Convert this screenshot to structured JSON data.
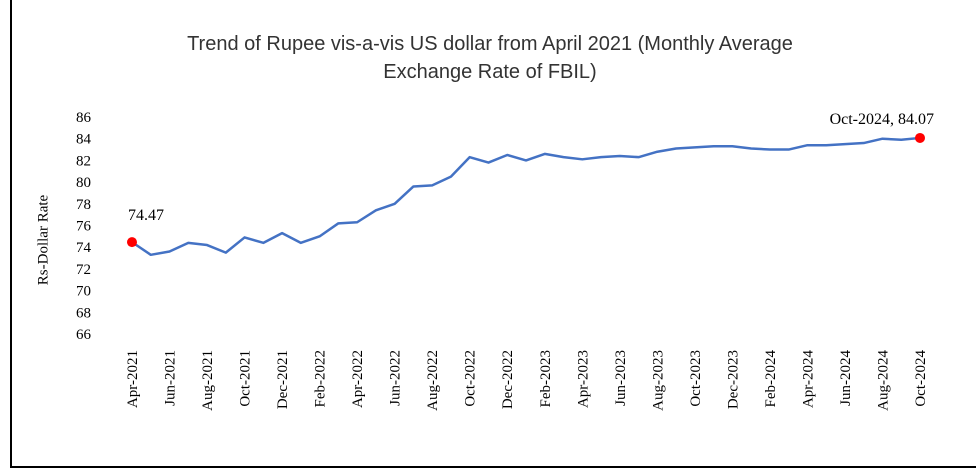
{
  "chart_data": {
    "type": "line",
    "title_line1": "Trend of Rupee vis-a-vis US dollar from April 2021 (Monthly Average",
    "title_line2": "Exchange Rate of FBIL)",
    "xlabel": "",
    "ylabel": "Rs-Dollar Rate",
    "ylim": [
      66,
      86
    ],
    "yticks": [
      "86",
      "84",
      "82",
      "80",
      "78",
      "76",
      "74",
      "72",
      "70",
      "68",
      "66"
    ],
    "xtick_labels": [
      "Apr-2021",
      "Jun-2021",
      "Aug-2021",
      "Oct-2021",
      "Dec-2021",
      "Feb-2022",
      "Apr-2022",
      "Jun-2022",
      "Aug-2022",
      "Oct-2022",
      "Dec-2022",
      "Feb-2023",
      "Apr-2023",
      "Jun-2023",
      "Aug-2023",
      "Oct-2023",
      "Dec-2023",
      "Feb-2024",
      "Apr-2024",
      "Jun-2024",
      "Aug-2024",
      "Oct-2024"
    ],
    "x": [
      "Apr-2021",
      "May-2021",
      "Jun-2021",
      "Jul-2021",
      "Aug-2021",
      "Sep-2021",
      "Oct-2021",
      "Nov-2021",
      "Dec-2021",
      "Jan-2022",
      "Feb-2022",
      "Mar-2022",
      "Apr-2022",
      "May-2022",
      "Jun-2022",
      "Jul-2022",
      "Aug-2022",
      "Sep-2022",
      "Oct-2022",
      "Nov-2022",
      "Dec-2022",
      "Jan-2023",
      "Feb-2023",
      "Mar-2023",
      "Apr-2023",
      "May-2023",
      "Jun-2023",
      "Jul-2023",
      "Aug-2023",
      "Sep-2023",
      "Oct-2023",
      "Nov-2023",
      "Dec-2023",
      "Jan-2024",
      "Feb-2024",
      "Mar-2024",
      "Apr-2024",
      "May-2024",
      "Jun-2024",
      "Jul-2024",
      "Aug-2024",
      "Sep-2024",
      "Oct-2024"
    ],
    "series": [
      {
        "color": "#4472c4",
        "values": [
          74.47,
          73.3,
          73.6,
          74.4,
          74.2,
          73.5,
          74.9,
          74.4,
          75.3,
          74.4,
          75.0,
          76.2,
          76.3,
          77.4,
          78.0,
          79.6,
          79.7,
          80.5,
          82.3,
          81.8,
          82.5,
          82.0,
          82.6,
          82.3,
          82.1,
          82.3,
          82.4,
          82.3,
          82.8,
          83.1,
          83.2,
          83.3,
          83.3,
          83.1,
          83.0,
          83.0,
          83.4,
          83.4,
          83.5,
          83.6,
          84.0,
          83.9,
          84.07
        ]
      }
    ],
    "annotations": [
      {
        "text": "74.47",
        "x": "Apr-2021",
        "y": 74.47,
        "color": "#ff0000"
      },
      {
        "text": "Oct-2024, 84.07",
        "x": "Oct-2024",
        "y": 84.07,
        "color": "#ff0000"
      }
    ],
    "grid": false
  }
}
